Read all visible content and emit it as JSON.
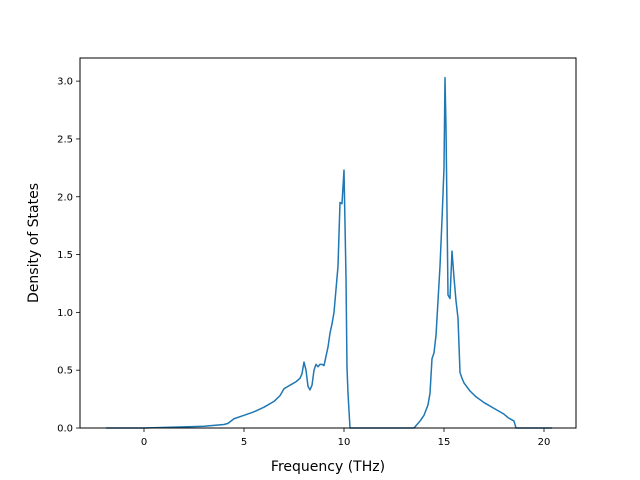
{
  "chart_data": {
    "type": "line",
    "title": "",
    "xlabel": "Frequency (THz)",
    "ylabel": "Density of States",
    "xlim": [
      -3.2,
      21.6
    ],
    "ylim": [
      0.0,
      3.2
    ],
    "xticks": [
      0,
      5,
      10,
      15,
      20
    ],
    "xtick_labels": [
      "0",
      "5",
      "10",
      "15",
      "20"
    ],
    "yticks": [
      0.0,
      0.5,
      1.0,
      1.5,
      2.0,
      2.5,
      3.0
    ],
    "ytick_labels": [
      "0.0",
      "0.5",
      "1.0",
      "1.5",
      "2.0",
      "2.5",
      "3.0"
    ],
    "grid": false,
    "line_color": "#1f77b4",
    "series": [
      {
        "x": [
          -1.9,
          0,
          2,
          3,
          4,
          4.2,
          4.5,
          5,
          5.5,
          6,
          6.5,
          6.8,
          7,
          7.2,
          7.4,
          7.6,
          7.8,
          7.9,
          8,
          8.1,
          8.2,
          8.3,
          8.4,
          8.5,
          8.6,
          8.7,
          8.8,
          8.9,
          9.0,
          9.1,
          9.2,
          9.3,
          9.4,
          9.5,
          9.7,
          9.8,
          9.9,
          10.0,
          10.1,
          10.15,
          10.2,
          10.3,
          10.4,
          10.5,
          10.55,
          11,
          12,
          13.5,
          13.8,
          14.0,
          14.2,
          14.3,
          14.4,
          14.5,
          14.6,
          14.7,
          14.8,
          14.9,
          15.0,
          15.05,
          15.1,
          15.2,
          15.3,
          15.4,
          15.5,
          15.6,
          15.7,
          15.8,
          15.9,
          16.0,
          16.3,
          16.6,
          17,
          17.5,
          18,
          18.2,
          18.5,
          18.6,
          20.4
        ],
        "y": [
          0.0,
          0.0,
          0.01,
          0.015,
          0.03,
          0.04,
          0.08,
          0.11,
          0.14,
          0.18,
          0.23,
          0.28,
          0.34,
          0.36,
          0.38,
          0.4,
          0.43,
          0.47,
          0.57,
          0.5,
          0.36,
          0.33,
          0.37,
          0.5,
          0.55,
          0.53,
          0.55,
          0.55,
          0.54,
          0.62,
          0.7,
          0.82,
          0.9,
          1.0,
          1.4,
          1.95,
          1.94,
          2.23,
          1.3,
          0.52,
          0.3,
          0.0,
          0.0,
          0.0,
          0.0,
          0.0,
          0.0,
          0.0,
          0.06,
          0.11,
          0.2,
          0.3,
          0.6,
          0.65,
          0.8,
          1.1,
          1.4,
          1.8,
          2.25,
          3.03,
          2.6,
          1.15,
          1.12,
          1.53,
          1.3,
          1.1,
          0.95,
          0.48,
          0.43,
          0.39,
          0.32,
          0.27,
          0.22,
          0.17,
          0.12,
          0.09,
          0.06,
          0.0,
          0.0
        ]
      }
    ]
  }
}
